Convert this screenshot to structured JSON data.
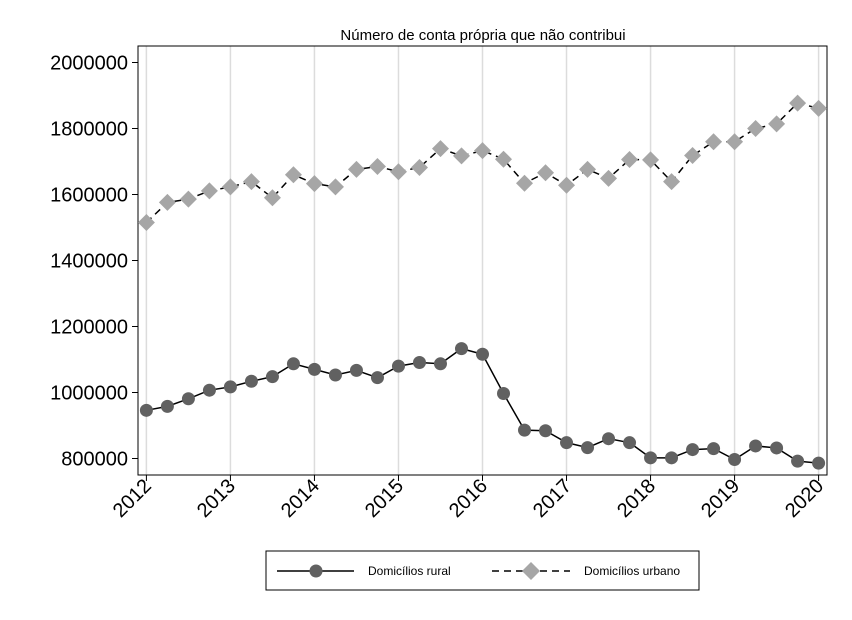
{
  "chart_data": {
    "type": "line",
    "title": "Número de conta própria que não contribui",
    "xlabel": "",
    "ylabel": "",
    "x": [
      2012.0,
      2012.25,
      2012.5,
      2012.75,
      2013.0,
      2013.25,
      2013.5,
      2013.75,
      2014.0,
      2014.25,
      2014.5,
      2014.75,
      2015.0,
      2015.25,
      2015.5,
      2015.75,
      2016.0,
      2016.25,
      2016.5,
      2016.75,
      2017.0,
      2017.25,
      2017.5,
      2017.75,
      2018.0,
      2018.25,
      2018.5,
      2018.75,
      2019.0,
      2019.25,
      2019.5,
      2019.75,
      2020.0
    ],
    "xticks": [
      2012,
      2013,
      2014,
      2015,
      2016,
      2017,
      2018,
      2019,
      2020
    ],
    "xtick_labels": [
      "2012",
      "2013",
      "2014",
      "2015",
      "2016",
      "2017",
      "2018",
      "2019",
      "2020"
    ],
    "yticks": [
      800000,
      1000000,
      1200000,
      1400000,
      1600000,
      1800000,
      2000000
    ],
    "ytick_labels": [
      "800000",
      "1000000",
      "1200000",
      "1400000",
      "1600000",
      "1800000",
      "2000000"
    ],
    "ylim": [
      750000,
      2050000
    ],
    "xlim": [
      2011.9,
      2020.1
    ],
    "grid": "vertical",
    "legend": "bottom",
    "series": [
      {
        "name": "Domicílios rural",
        "style": "solid",
        "marker": "circle",
        "color": "#616161",
        "values": [
          946000,
          958000,
          981000,
          1007000,
          1017000,
          1034000,
          1048000,
          1087000,
          1070000,
          1053000,
          1067000,
          1045000,
          1080000,
          1091000,
          1087000,
          1133000,
          1116000,
          997000,
          886000,
          884000,
          848000,
          833000,
          860000,
          848000,
          802000,
          802000,
          827000,
          830000,
          797000,
          838000,
          832000,
          792000,
          786000
        ]
      },
      {
        "name": "Domicílios urbano",
        "style": "dashed",
        "marker": "diamond",
        "color": "#a6a6a6",
        "values": [
          1515000,
          1576000,
          1586000,
          1611000,
          1623000,
          1639000,
          1590000,
          1660000,
          1633000,
          1623000,
          1676000,
          1685000,
          1669000,
          1682000,
          1739000,
          1717000,
          1733000,
          1707000,
          1634000,
          1666000,
          1628000,
          1676000,
          1649000,
          1706000,
          1705000,
          1639000,
          1718000,
          1760000,
          1760000,
          1800000,
          1814000,
          1877000,
          1861000
        ]
      }
    ]
  }
}
